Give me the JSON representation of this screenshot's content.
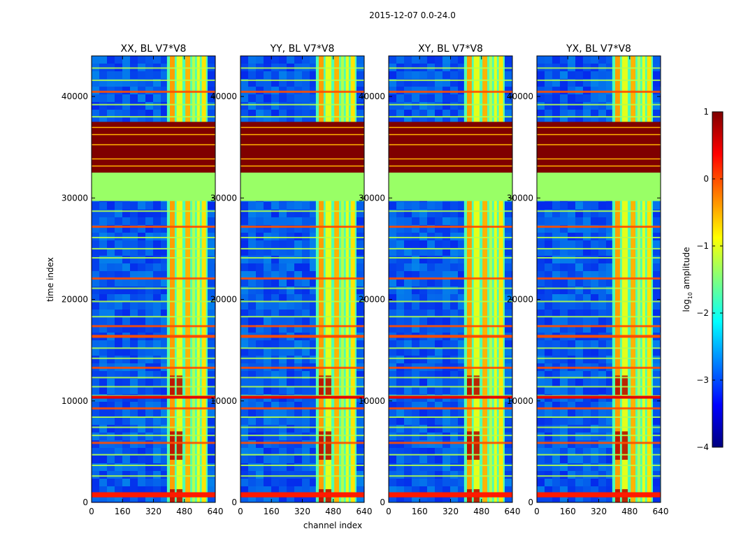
{
  "chart_data": {
    "type": "heatmap",
    "suptitle": "2015-12-07 0.0-24.0",
    "xlabel": "channel index",
    "ylabel": "time index",
    "xlim": [
      0,
      640
    ],
    "ylim": [
      0,
      44000
    ],
    "xticks": [
      "0",
      "160",
      "320",
      "480",
      "640"
    ],
    "yticks": [
      "0",
      "10000",
      "20000",
      "30000",
      "40000"
    ],
    "colormap": "jet",
    "colorbar": {
      "label_prefix": "log",
      "label_subscript": "10",
      "label_suffix": " amplitude",
      "range": [
        -4,
        1
      ],
      "ticks": [
        "1",
        "0",
        "−1",
        "−2",
        "−3",
        "−4"
      ],
      "tick_values": [
        1,
        0,
        -1,
        -2,
        -3,
        -4
      ]
    },
    "panels": [
      {
        "title": "XX, BL V7*V8"
      },
      {
        "title": "YY, BL V7*V8"
      },
      {
        "title": "XY, BL V7*V8"
      },
      {
        "title": "YX, BL V7*V8"
      }
    ],
    "regions": [
      {
        "name": "saturated-block",
        "time_range": [
          32500,
          37500
        ],
        "log10_amplitude": 1
      },
      {
        "name": "flat-block",
        "time_range": [
          29700,
          32500
        ],
        "log10_amplitude": -1
      }
    ],
    "bright_channel_band": [
      390,
      600
    ],
    "colors": {
      "saturated": "#7f0000",
      "flat": "#99ff66",
      "background": "#0a3cd6"
    }
  }
}
